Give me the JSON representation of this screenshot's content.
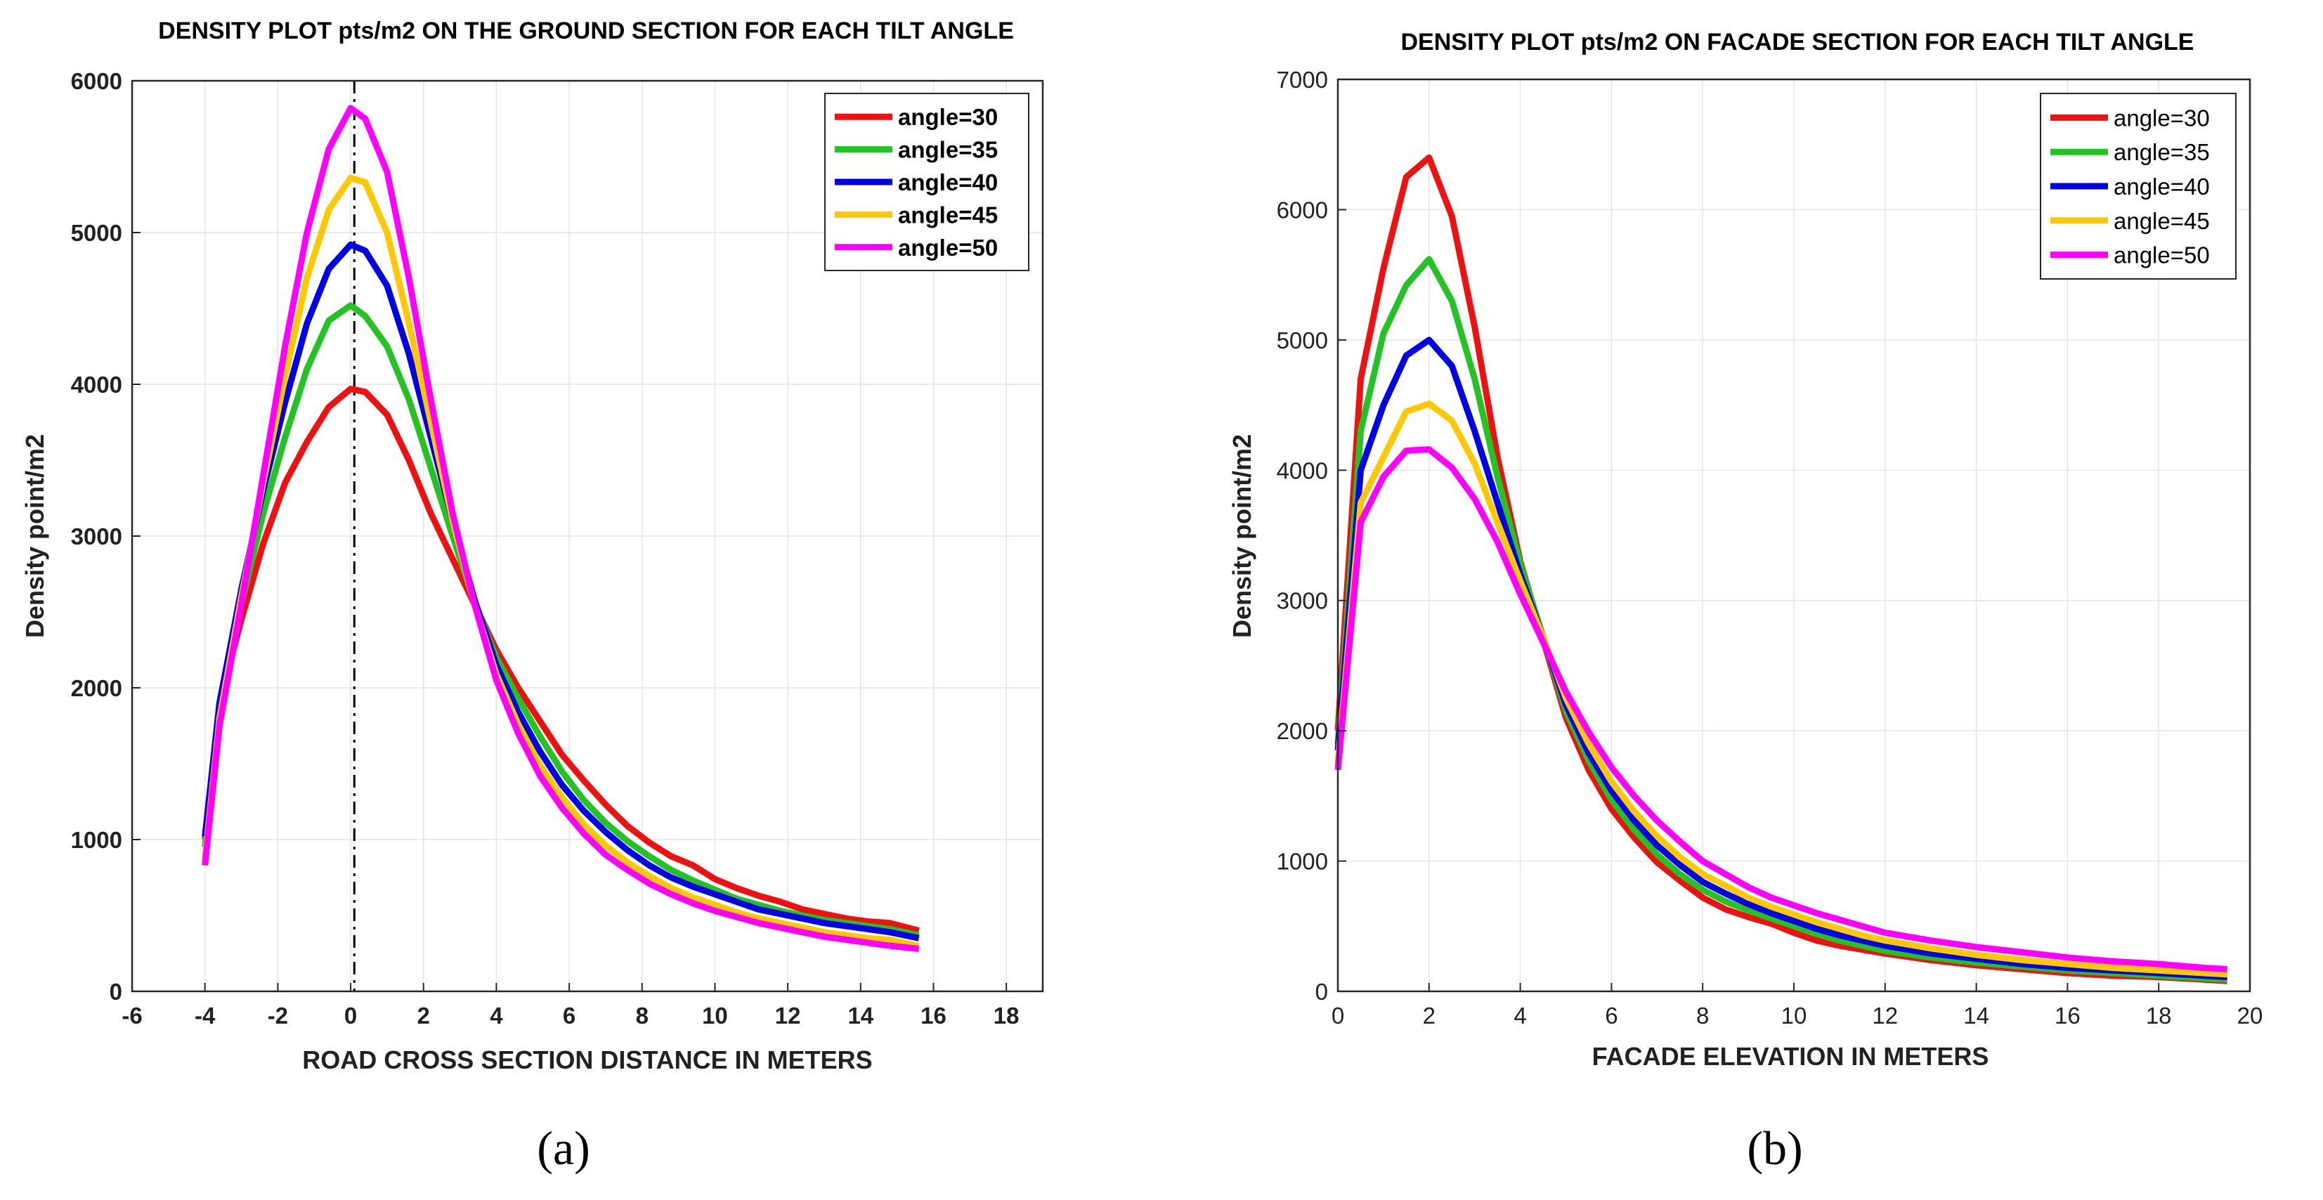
{
  "colors": {
    "angle30": "#ee1111",
    "angle35": "#22c322",
    "angle40": "#0000e6",
    "angle45": "#ffc800",
    "angle50": "#ff00ff"
  },
  "chart_data": [
    {
      "type": "line",
      "panel": "a",
      "caption": "(a)",
      "title": "DENSITY PLOT pts/m2 ON THE GROUND SECTION FOR EACH TILT ANGLE",
      "xlabel": "ROAD CROSS SECTION DISTANCE IN METERS",
      "ylabel": "Density point/m2",
      "xlim": [
        -6,
        19
      ],
      "ylim": [
        0,
        6000
      ],
      "xticks": [
        -6,
        -4,
        -2,
        0,
        2,
        4,
        6,
        8,
        10,
        12,
        14,
        16,
        18
      ],
      "yticks": [
        0,
        1000,
        2000,
        3000,
        4000,
        5000,
        6000
      ],
      "grid": true,
      "legend_position": "top-right",
      "reference_line": {
        "x": 0.1,
        "style": "dash-dot"
      },
      "x": [
        -4.0,
        -3.6,
        -3.0,
        -2.4,
        -1.8,
        -1.2,
        -0.6,
        0.0,
        0.4,
        1.0,
        1.6,
        2.2,
        2.8,
        3.4,
        4.0,
        4.6,
        5.2,
        5.8,
        6.4,
        7.0,
        7.6,
        8.2,
        8.8,
        9.4,
        10.0,
        10.6,
        11.2,
        11.8,
        12.4,
        13.0,
        13.6,
        14.2,
        14.8,
        15.6
      ],
      "series": [
        {
          "name": "angle=30",
          "color_key": "angle30",
          "values": [
            1000,
            1900,
            2450,
            2950,
            3350,
            3620,
            3850,
            3970,
            3950,
            3800,
            3500,
            3150,
            2850,
            2550,
            2250,
            2000,
            1780,
            1560,
            1390,
            1230,
            1090,
            980,
            890,
            830,
            740,
            680,
            630,
            590,
            540,
            510,
            480,
            460,
            450,
            400
          ]
        },
        {
          "name": "angle=35",
          "color_key": "angle35",
          "values": [
            950,
            1850,
            2550,
            3150,
            3650,
            4100,
            4420,
            4520,
            4450,
            4250,
            3900,
            3450,
            3000,
            2560,
            2200,
            1930,
            1680,
            1450,
            1260,
            1110,
            990,
            890,
            800,
            730,
            670,
            610,
            570,
            530,
            500,
            470,
            450,
            430,
            410,
            370
          ]
        },
        {
          "name": "angle=40",
          "color_key": "angle40",
          "values": [
            1020,
            1900,
            2650,
            3300,
            3880,
            4400,
            4760,
            4920,
            4880,
            4650,
            4200,
            3650,
            3100,
            2580,
            2150,
            1840,
            1580,
            1360,
            1190,
            1050,
            930,
            830,
            750,
            690,
            640,
            590,
            540,
            510,
            480,
            450,
            430,
            410,
            390,
            350
          ]
        },
        {
          "name": "angle=45",
          "color_key": "angle45",
          "values": [
            870,
            1800,
            2600,
            3350,
            4050,
            4700,
            5150,
            5360,
            5330,
            5000,
            4400,
            3750,
            3100,
            2550,
            2090,
            1760,
            1490,
            1280,
            1100,
            960,
            850,
            760,
            680,
            620,
            570,
            520,
            480,
            450,
            420,
            390,
            370,
            350,
            340,
            300
          ]
        },
        {
          "name": "angle=50",
          "color_key": "angle50",
          "values": [
            830,
            1750,
            2550,
            3400,
            4250,
            5000,
            5550,
            5820,
            5750,
            5400,
            4700,
            3900,
            3150,
            2550,
            2050,
            1700,
            1420,
            1210,
            1040,
            900,
            800,
            710,
            640,
            580,
            530,
            490,
            450,
            420,
            390,
            360,
            340,
            320,
            300,
            280
          ]
        }
      ]
    },
    {
      "type": "line",
      "panel": "b",
      "caption": "(b)",
      "title": "DENSITY PLOT pts/m2 ON FACADE SECTION FOR EACH TILT ANGLE",
      "xlabel": "FACADE ELEVATION IN METERS",
      "ylabel": "Density point/m2",
      "xlim": [
        0,
        20
      ],
      "ylim": [
        0,
        7000
      ],
      "xticks": [
        0,
        2,
        4,
        6,
        8,
        10,
        12,
        14,
        16,
        18,
        20
      ],
      "yticks": [
        0,
        1000,
        2000,
        3000,
        4000,
        5000,
        6000,
        7000
      ],
      "grid": true,
      "legend_position": "top-right",
      "x": [
        0.0,
        0.5,
        1.0,
        1.5,
        2.0,
        2.5,
        3.0,
        3.5,
        4.0,
        4.5,
        5.0,
        5.5,
        6.0,
        6.5,
        7.0,
        7.5,
        8.0,
        8.5,
        9.0,
        9.5,
        10.0,
        10.5,
        11.0,
        11.5,
        12.0,
        13.0,
        14.0,
        15.0,
        16.0,
        17.0,
        18.0,
        19.0,
        19.5
      ],
      "series": [
        {
          "name": "angle=30",
          "color_key": "angle30",
          "values": [
            2000,
            4700,
            5550,
            6250,
            6400,
            5950,
            5100,
            4100,
            3300,
            2700,
            2100,
            1700,
            1400,
            1180,
            990,
            850,
            720,
            630,
            570,
            520,
            450,
            390,
            350,
            320,
            290,
            240,
            200,
            170,
            140,
            120,
            110,
            90,
            80
          ]
        },
        {
          "name": "angle=35",
          "color_key": "angle35",
          "values": [
            1900,
            4300,
            5050,
            5420,
            5620,
            5300,
            4700,
            3950,
            3280,
            2720,
            2150,
            1770,
            1470,
            1240,
            1050,
            900,
            780,
            690,
            620,
            560,
            500,
            440,
            390,
            350,
            310,
            260,
            220,
            190,
            160,
            140,
            120,
            100,
            90
          ]
        },
        {
          "name": "angle=40",
          "color_key": "angle40",
          "values": [
            1850,
            4000,
            4500,
            4880,
            5000,
            4800,
            4300,
            3750,
            3200,
            2720,
            2200,
            1830,
            1540,
            1310,
            1120,
            970,
            840,
            750,
            670,
            600,
            540,
            480,
            430,
            390,
            350,
            290,
            250,
            210,
            180,
            160,
            140,
            120,
            110
          ]
        },
        {
          "name": "angle=45",
          "color_key": "angle45",
          "values": [
            1750,
            3750,
            4100,
            4450,
            4510,
            4380,
            4050,
            3600,
            3150,
            2720,
            2250,
            1900,
            1610,
            1380,
            1190,
            1030,
            900,
            810,
            720,
            650,
            590,
            530,
            480,
            430,
            390,
            330,
            280,
            240,
            210,
            180,
            160,
            140,
            130
          ]
        },
        {
          "name": "angle=50",
          "color_key": "angle50",
          "values": [
            1700,
            3600,
            3950,
            4150,
            4160,
            4020,
            3780,
            3450,
            3050,
            2680,
            2300,
            1990,
            1720,
            1500,
            1310,
            1150,
            1000,
            900,
            800,
            720,
            660,
            600,
            550,
            500,
            450,
            390,
            340,
            300,
            260,
            230,
            210,
            180,
            170
          ]
        }
      ]
    }
  ]
}
